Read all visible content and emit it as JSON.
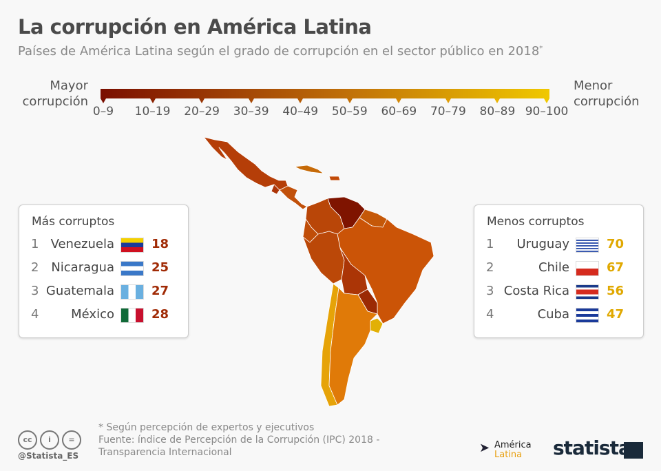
{
  "title": "La corrupción en América Latina",
  "subtitle": "Países de América Latina según el grado de corrupción en el sector público en 2018",
  "subtitle_mark": "*",
  "legend": {
    "left_label_1": "Mayor",
    "left_label_2": "corrupción",
    "right_label_1": "Menor",
    "right_label_2": "corrupción",
    "ranges": [
      "0–9",
      "10–19",
      "20–29",
      "30–39",
      "40–49",
      "50–59",
      "60–69",
      "70–79",
      "80–89",
      "90–100"
    ],
    "colors": [
      "#7a0e00",
      "#8a2100",
      "#983505",
      "#a84a06",
      "#b65d08",
      "#c47108",
      "#d38808",
      "#e09d06",
      "#eab404",
      "#f0c800"
    ]
  },
  "most": {
    "title": "Más corruptos",
    "items": [
      {
        "rank": "1",
        "name": "Venezuela",
        "score": "18",
        "flag": "venezuela"
      },
      {
        "rank": "2",
        "name": "Nicaragua",
        "score": "25",
        "flag": "nicaragua"
      },
      {
        "rank": "3",
        "name": "Guatemala",
        "score": "27",
        "flag": "guatemala"
      },
      {
        "rank": "4",
        "name": "México",
        "score": "28",
        "flag": "mexico"
      }
    ],
    "color": "#a02a05"
  },
  "least": {
    "title": "Menos corruptos",
    "items": [
      {
        "rank": "1",
        "name": "Uruguay",
        "score": "70",
        "flag": "uruguay"
      },
      {
        "rank": "2",
        "name": "Chile",
        "score": "67",
        "flag": "chile"
      },
      {
        "rank": "3",
        "name": "Costa Rica",
        "score": "56",
        "flag": "costa-rica"
      },
      {
        "rank": "4",
        "name": "Cuba",
        "score": "47",
        "flag": "cuba"
      }
    ],
    "color": "#e0a800"
  },
  "footer": {
    "note": "* Según percepción de expertos y ejecutivos",
    "source_1": "Fuente: índice de Percepción de la Corrupción (IPC) 2018 -",
    "source_2": "Transparencia Internacional",
    "handle": "@Statista_ES",
    "partner_1": "América",
    "partner_2": "Latina",
    "brand": "statista"
  }
}
